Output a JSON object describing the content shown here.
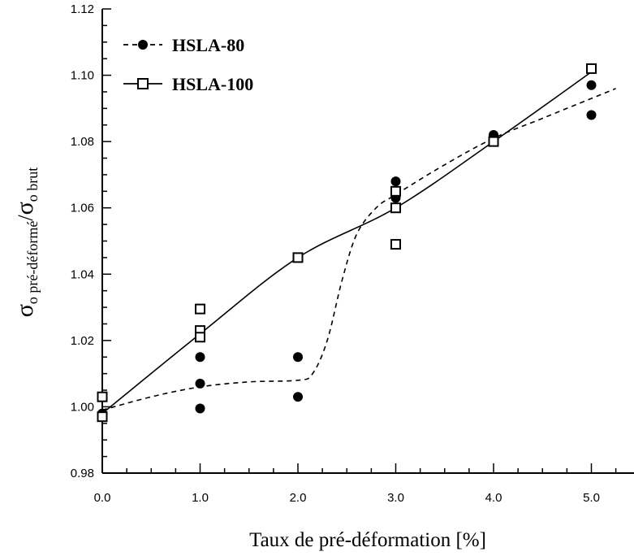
{
  "chart_data": {
    "type": "scatter",
    "xlabel": "Taux de pré-déformation [%]",
    "ylabel": {
      "sigma": "σ",
      "sub1": "o pré-déformé",
      "slash": "/",
      "sub2": "o brut"
    },
    "xlim": [
      0,
      5.5
    ],
    "ylim": [
      0.98,
      1.12
    ],
    "x_ticks": [
      "0.0",
      "1.0",
      "2.0",
      "3.0",
      "4.0",
      "5.0"
    ],
    "y_ticks": [
      "0.98",
      "1.00",
      "1.02",
      "1.04",
      "1.06",
      "1.08",
      "1.10",
      "1.12"
    ],
    "grid": false,
    "legend_position": "top-left",
    "series": [
      {
        "name": "HSLA-80",
        "marker": "filled-circle",
        "line_style": "dashed",
        "color": "#000000",
        "points": [
          [
            0.0,
            0.998
          ],
          [
            0.0,
            0.997
          ],
          [
            1.0,
            1.015
          ],
          [
            1.0,
            1.007
          ],
          [
            1.0,
            0.9995
          ],
          [
            2.0,
            1.015
          ],
          [
            2.0,
            1.003
          ],
          [
            3.0,
            1.068
          ],
          [
            3.0,
            1.064
          ],
          [
            3.0,
            1.063
          ],
          [
            4.0,
            1.082
          ],
          [
            5.0,
            1.097
          ],
          [
            5.0,
            1.088
          ]
        ],
        "trend": [
          [
            0.0,
            0.999
          ],
          [
            0.5,
            1.003
          ],
          [
            1.0,
            1.006
          ],
          [
            1.5,
            1.0075
          ],
          [
            2.0,
            1.008
          ],
          [
            2.15,
            1.01
          ],
          [
            2.3,
            1.02
          ],
          [
            2.45,
            1.038
          ],
          [
            2.6,
            1.052
          ],
          [
            2.8,
            1.06
          ],
          [
            3.0,
            1.064
          ],
          [
            3.5,
            1.073
          ],
          [
            4.0,
            1.081
          ],
          [
            4.5,
            1.087
          ],
          [
            5.0,
            1.093
          ],
          [
            5.25,
            1.096
          ]
        ]
      },
      {
        "name": "HSLA-100",
        "marker": "open-square",
        "line_style": "solid",
        "color": "#000000",
        "points": [
          [
            0.0,
            1.003
          ],
          [
            0.0,
            0.997
          ],
          [
            1.0,
            1.0295
          ],
          [
            1.0,
            1.023
          ],
          [
            1.0,
            1.021
          ],
          [
            2.0,
            1.045
          ],
          [
            3.0,
            1.065
          ],
          [
            3.0,
            1.06
          ],
          [
            3.0,
            1.049
          ],
          [
            4.0,
            1.08
          ],
          [
            5.0,
            1.102
          ]
        ],
        "trend": [
          [
            0.0,
            0.998
          ],
          [
            1.0,
            1.022
          ],
          [
            2.0,
            1.045
          ],
          [
            3.0,
            1.06
          ],
          [
            4.0,
            1.08
          ],
          [
            5.0,
            1.101
          ]
        ]
      }
    ]
  }
}
